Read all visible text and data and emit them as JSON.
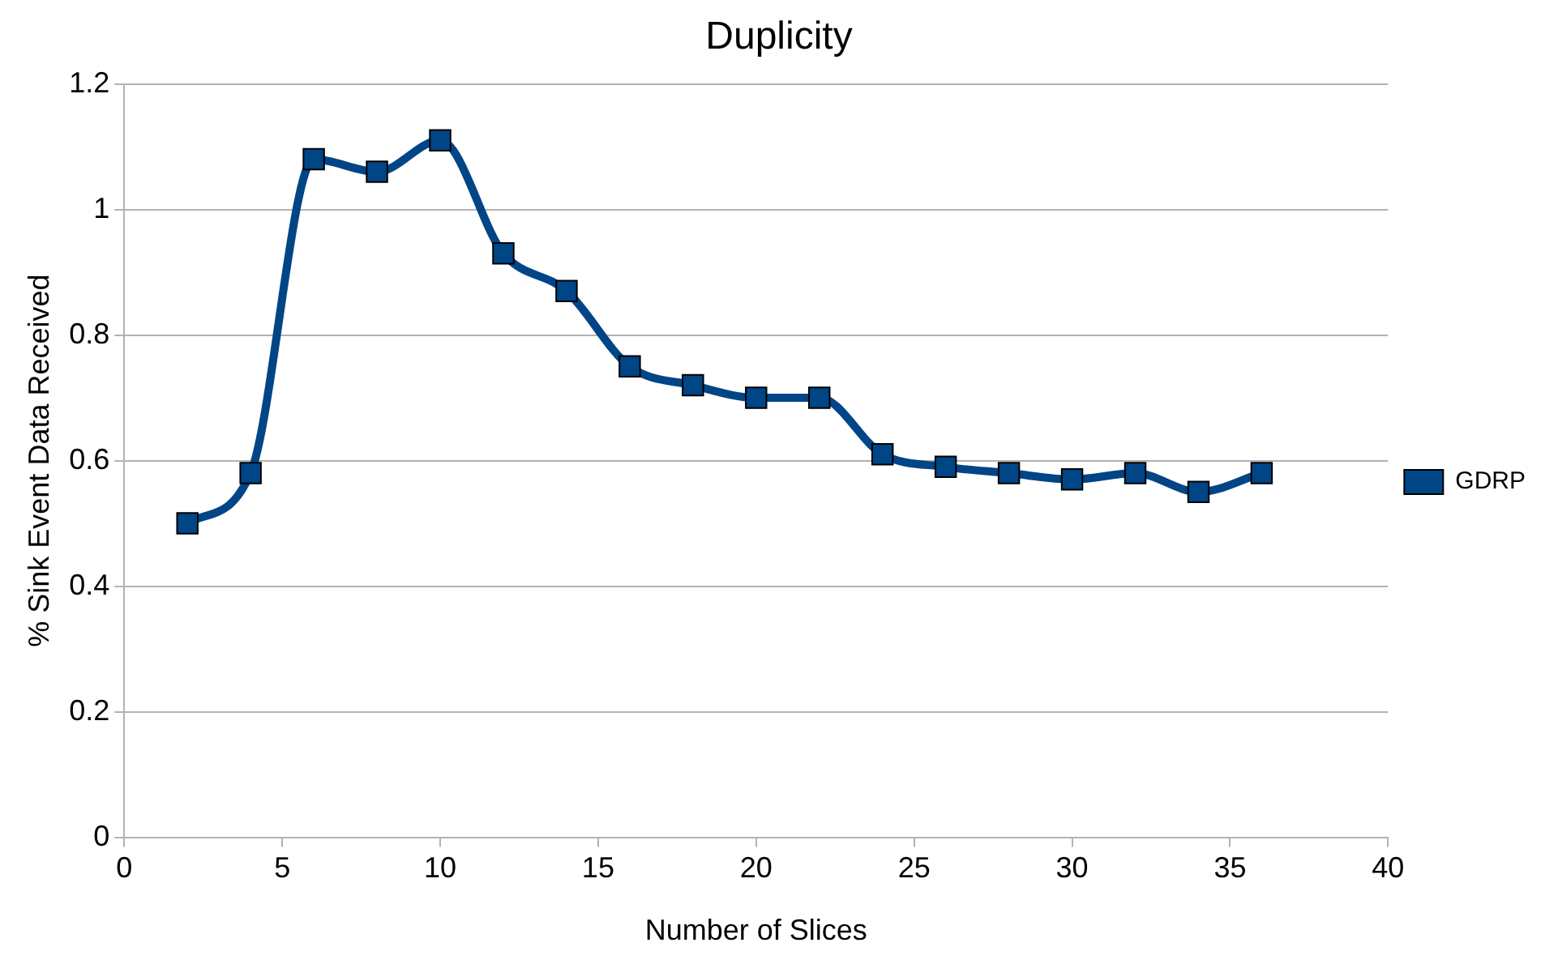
{
  "chart_data": {
    "type": "line",
    "title": "Duplicity",
    "xlabel": "Number of Slices",
    "ylabel": "% Sink Event Data Received",
    "x": [
      2,
      4,
      6,
      8,
      10,
      12,
      14,
      16,
      18,
      20,
      22,
      24,
      26,
      28,
      30,
      32,
      34,
      36
    ],
    "series": [
      {
        "name": "GDRP",
        "color": "#004586",
        "values": [
          0.5,
          0.58,
          1.08,
          1.06,
          1.11,
          0.93,
          0.87,
          0.75,
          0.72,
          0.7,
          0.7,
          0.61,
          0.59,
          0.58,
          0.57,
          0.58,
          0.55,
          0.58
        ]
      }
    ],
    "xlim": [
      0,
      40
    ],
    "xticks": [
      0,
      5,
      10,
      15,
      20,
      25,
      30,
      35,
      40
    ],
    "ylim": [
      0,
      1.2
    ],
    "yticks": [
      0,
      0.2,
      0.4,
      0.6,
      0.8,
      1,
      1.2
    ],
    "grid": "y",
    "legend": "right",
    "marker": "square",
    "line_style": "solid"
  }
}
